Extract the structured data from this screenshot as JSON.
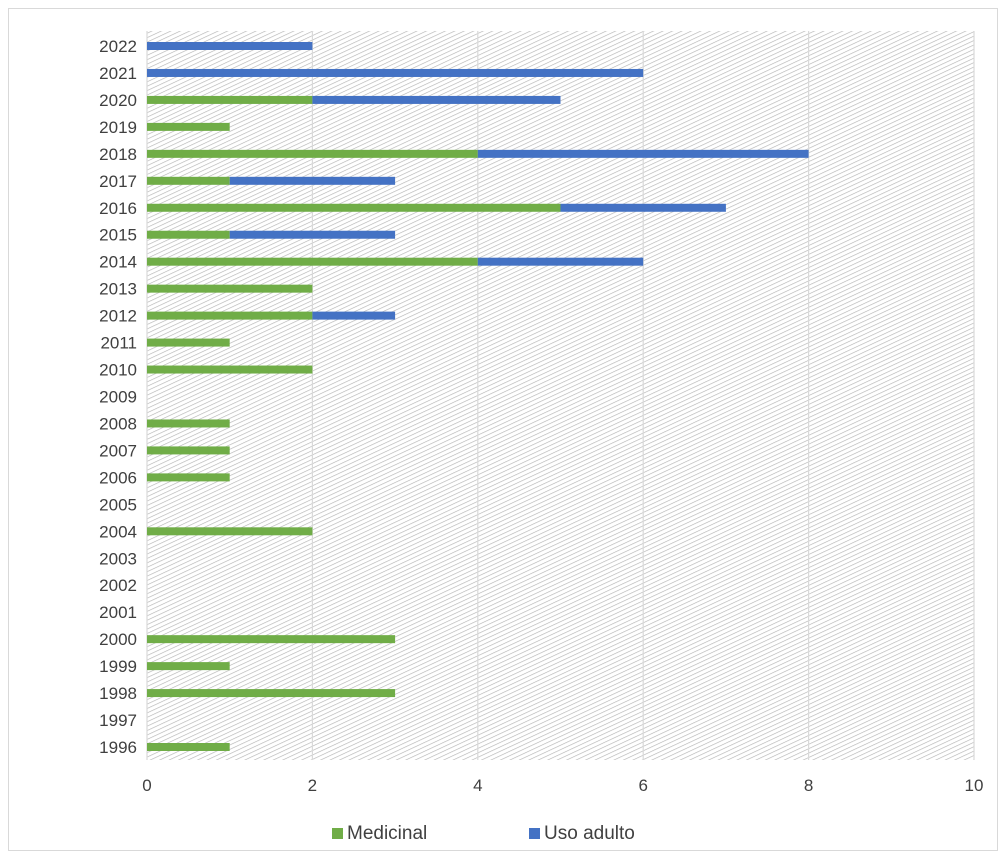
{
  "chart_data": {
    "type": "bar",
    "orientation": "horizontal",
    "stacked": true,
    "categories": [
      "1996",
      "1997",
      "1998",
      "1999",
      "2000",
      "2001",
      "2002",
      "2003",
      "2004",
      "2005",
      "2006",
      "2007",
      "2008",
      "2009",
      "2010",
      "2011",
      "2012",
      "2013",
      "2014",
      "2015",
      "2016",
      "2017",
      "2018",
      "2019",
      "2020",
      "2021",
      "2022"
    ],
    "series": [
      {
        "name": "Medicinal",
        "color": "#70ad47",
        "values": [
          1,
          0,
          3,
          1,
          3,
          0,
          0,
          0,
          2,
          0,
          1,
          1,
          1,
          0,
          2,
          1,
          2,
          2,
          4,
          1,
          5,
          1,
          4,
          1,
          2,
          0,
          0
        ]
      },
      {
        "name": "Uso adulto",
        "color": "#4472c4",
        "values": [
          0,
          0,
          0,
          0,
          0,
          0,
          0,
          0,
          0,
          0,
          0,
          0,
          0,
          0,
          0,
          0,
          1,
          0,
          2,
          2,
          2,
          2,
          4,
          0,
          3,
          6,
          2
        ]
      }
    ],
    "xlim": [
      0,
      10
    ],
    "xticks": [
      "0",
      "2",
      "4",
      "6",
      "8",
      "10"
    ],
    "grid": true,
    "background": "hatched-gray",
    "legend_position": "bottom"
  }
}
